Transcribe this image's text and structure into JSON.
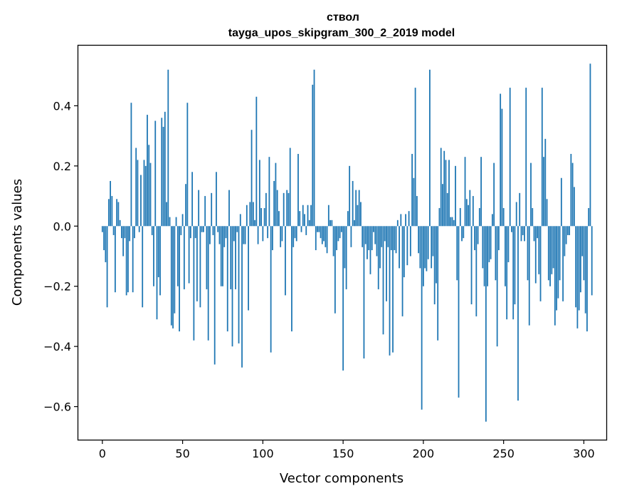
{
  "chart_data": {
    "type": "bar",
    "title": "ствол",
    "subtitle": "tayga_upos_skipgram_300_2_2019 model",
    "xlabel": "Vector components",
    "ylabel": "Components values",
    "xlim": [
      -15,
      314
    ],
    "ylim": [
      -0.71,
      0.6
    ],
    "xticks": [
      0,
      50,
      100,
      150,
      200,
      250,
      300
    ],
    "yticks": [
      -0.6,
      -0.4,
      -0.2,
      0.0,
      0.2,
      0.4
    ],
    "ytick_labels": [
      "−0.6",
      "−0.4",
      "−0.2",
      "0.0",
      "0.2",
      "0.4"
    ],
    "bar_color": "#1f77b4",
    "values": [
      -0.02,
      -0.08,
      -0.12,
      -0.27,
      0.09,
      0.15,
      0.1,
      -0.03,
      -0.22,
      0.09,
      0.08,
      0.02,
      -0.04,
      -0.1,
      -0.04,
      -0.23,
      -0.22,
      -0.05,
      0.41,
      -0.22,
      -0.04,
      0.26,
      0.22,
      -0.02,
      0.17,
      -0.27,
      0.22,
      0.2,
      0.37,
      0.27,
      0.21,
      -0.03,
      -0.2,
      0.35,
      -0.31,
      -0.17,
      -0.23,
      0.36,
      0.33,
      0.38,
      0.08,
      0.52,
      0.03,
      -0.33,
      -0.34,
      -0.29,
      0.03,
      -0.2,
      -0.35,
      -0.03,
      0.04,
      -0.21,
      0.14,
      0.41,
      -0.19,
      -0.04,
      0.18,
      -0.38,
      -0.04,
      -0.25,
      0.12,
      -0.27,
      -0.02,
      -0.02,
      0.1,
      -0.21,
      -0.38,
      -0.06,
      0.11,
      -0.03,
      -0.46,
      0.18,
      -0.02,
      -0.06,
      -0.2,
      -0.2,
      -0.07,
      -0.04,
      -0.35,
      0.12,
      -0.21,
      -0.4,
      -0.05,
      -0.21,
      -0.02,
      -0.39,
      0.04,
      -0.47,
      -0.06,
      -0.06,
      0.07,
      -0.28,
      0.08,
      0.32,
      0.08,
      0.02,
      0.43,
      -0.06,
      0.22,
      0.06,
      -0.05,
      0.06,
      0.11,
      -0.04,
      0.23,
      -0.42,
      -0.08,
      0.15,
      0.21,
      0.12,
      0.05,
      -0.07,
      -0.05,
      0.11,
      -0.23,
      0.12,
      0.11,
      0.26,
      -0.35,
      -0.07,
      -0.04,
      -0.05,
      0.24,
      0.05,
      -0.02,
      0.07,
      0.04,
      -0.03,
      0.07,
      0.02,
      0.07,
      0.47,
      0.52,
      -0.08,
      -0.02,
      -0.02,
      -0.04,
      -0.06,
      -0.05,
      -0.07,
      -0.09,
      0.07,
      0.02,
      0.02,
      -0.1,
      -0.29,
      -0.08,
      -0.05,
      -0.04,
      -0.02,
      -0.48,
      -0.14,
      -0.21,
      0.05,
      0.2,
      -0.07,
      0.15,
      0.02,
      0.12,
      0.07,
      0.12,
      0.08,
      -0.07,
      -0.44,
      -0.06,
      -0.11,
      -0.08,
      -0.16,
      -0.08,
      -0.02,
      -0.06,
      -0.1,
      -0.21,
      -0.14,
      -0.07,
      -0.36,
      -0.05,
      -0.25,
      -0.07,
      -0.43,
      -0.08,
      -0.42,
      -0.08,
      -0.09,
      0.02,
      -0.14,
      0.04,
      -0.3,
      -0.17,
      0.04,
      -0.13,
      0.05,
      -0.1,
      0.24,
      0.16,
      0.46,
      0.1,
      -0.09,
      -0.14,
      -0.61,
      -0.2,
      -0.14,
      -0.15,
      -0.11,
      0.52,
      -0.14,
      -0.1,
      -0.26,
      -0.19,
      -0.38,
      0.06,
      0.26,
      0.14,
      0.25,
      0.22,
      0.11,
      0.22,
      0.03,
      0.03,
      0.02,
      0.2,
      -0.18,
      -0.57,
      0.06,
      -0.05,
      -0.04,
      0.23,
      0.09,
      0.07,
      0.12,
      -0.26,
      0.1,
      -0.08,
      -0.3,
      -0.06,
      0.06,
      0.23,
      -0.14,
      -0.2,
      -0.65,
      -0.2,
      -0.12,
      -0.11,
      0.04,
      0.21,
      -0.18,
      -0.4,
      -0.08,
      0.44,
      0.39,
      0.06,
      -0.2,
      -0.31,
      -0.12,
      0.46,
      -0.02,
      -0.31,
      -0.26,
      0.08,
      -0.58,
      0.11,
      -0.05,
      -0.03,
      -0.05,
      0.46,
      -0.18,
      -0.33,
      0.21,
      0.06,
      -0.05,
      -0.19,
      -0.04,
      -0.16,
      -0.25,
      0.46,
      0.23,
      0.29,
      0.09,
      -0.18,
      -0.2,
      -0.16,
      -0.14,
      -0.33,
      -0.28,
      -0.24,
      -0.18,
      0.16,
      -0.25,
      -0.1,
      -0.06,
      -0.03,
      -0.03,
      0.24,
      0.21,
      0.13,
      -0.27,
      -0.34,
      -0.28,
      -0.22,
      -0.1,
      -0.18,
      -0.29,
      -0.35,
      0.06,
      0.54,
      -0.23
    ]
  }
}
